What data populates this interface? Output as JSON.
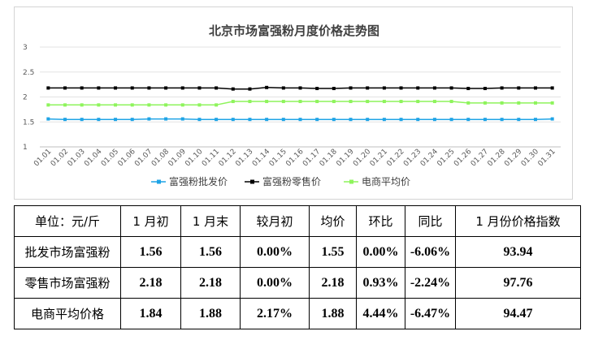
{
  "chart_data": {
    "type": "line",
    "title": "北京市场富强粉月度价格走势图",
    "categories": [
      "01.01",
      "01.02",
      "01.03",
      "01.04",
      "01.05",
      "01.06",
      "01.07",
      "01.08",
      "01.09",
      "01.10",
      "01.11",
      "01.12",
      "01.13",
      "01.14",
      "01.15",
      "01.16",
      "01.17",
      "01.18",
      "01.19",
      "01.20",
      "01.21",
      "01.22",
      "01.23",
      "01.24",
      "01.25",
      "01.26",
      "01.27",
      "01.28",
      "01.29",
      "01.30",
      "01.31"
    ],
    "ylim": [
      1,
      3
    ],
    "yticks": [
      1,
      1.5,
      2,
      2.5,
      3
    ],
    "ytick_labels": [
      "1",
      "1.5",
      "2",
      "2.5",
      "3"
    ],
    "grid": true,
    "legend_position": "bottom",
    "series": [
      {
        "name": "富强粉批发价",
        "color": "#1fa4e6",
        "values": [
          1.56,
          1.55,
          1.55,
          1.55,
          1.55,
          1.55,
          1.56,
          1.56,
          1.56,
          1.55,
          1.55,
          1.55,
          1.55,
          1.55,
          1.55,
          1.55,
          1.55,
          1.55,
          1.55,
          1.55,
          1.55,
          1.55,
          1.55,
          1.55,
          1.55,
          1.55,
          1.55,
          1.55,
          1.55,
          1.55,
          1.56
        ]
      },
      {
        "name": "富强粉零售价",
        "color": "#000000",
        "values": [
          2.18,
          2.18,
          2.18,
          2.18,
          2.18,
          2.18,
          2.18,
          2.18,
          2.18,
          2.18,
          2.18,
          2.16,
          2.16,
          2.19,
          2.18,
          2.18,
          2.17,
          2.17,
          2.18,
          2.18,
          2.18,
          2.18,
          2.18,
          2.18,
          2.18,
          2.17,
          2.17,
          2.18,
          2.18,
          2.18,
          2.18
        ]
      },
      {
        "name": "电商平均价",
        "color": "#8ef45c",
        "values": [
          1.84,
          1.84,
          1.84,
          1.84,
          1.84,
          1.84,
          1.84,
          1.84,
          1.84,
          1.84,
          1.84,
          1.91,
          1.91,
          1.91,
          1.91,
          1.91,
          1.91,
          1.91,
          1.91,
          1.91,
          1.91,
          1.91,
          1.91,
          1.91,
          1.91,
          1.88,
          1.88,
          1.88,
          1.88,
          1.88,
          1.88
        ]
      }
    ]
  },
  "table": {
    "headers": [
      "单位：元/斤",
      "1 月初",
      "1 月末",
      "较月初",
      "均价",
      "环比",
      "同比",
      "1 月份价格指数"
    ],
    "rows": [
      {
        "name": "批发市场富强粉",
        "cells": [
          "1.56",
          "1.56",
          "0.00%",
          "1.55",
          "0.00%",
          "-6.06%",
          "93.94"
        ]
      },
      {
        "name": "零售市场富强粉",
        "cells": [
          "2.18",
          "2.18",
          "0.00%",
          "2.18",
          "0.93%",
          "-2.24%",
          "97.76"
        ]
      },
      {
        "name": "电商平均价格",
        "cells": [
          "1.84",
          "1.88",
          "2.17%",
          "1.88",
          "4.44%",
          "-6.47%",
          "94.47"
        ]
      }
    ]
  }
}
